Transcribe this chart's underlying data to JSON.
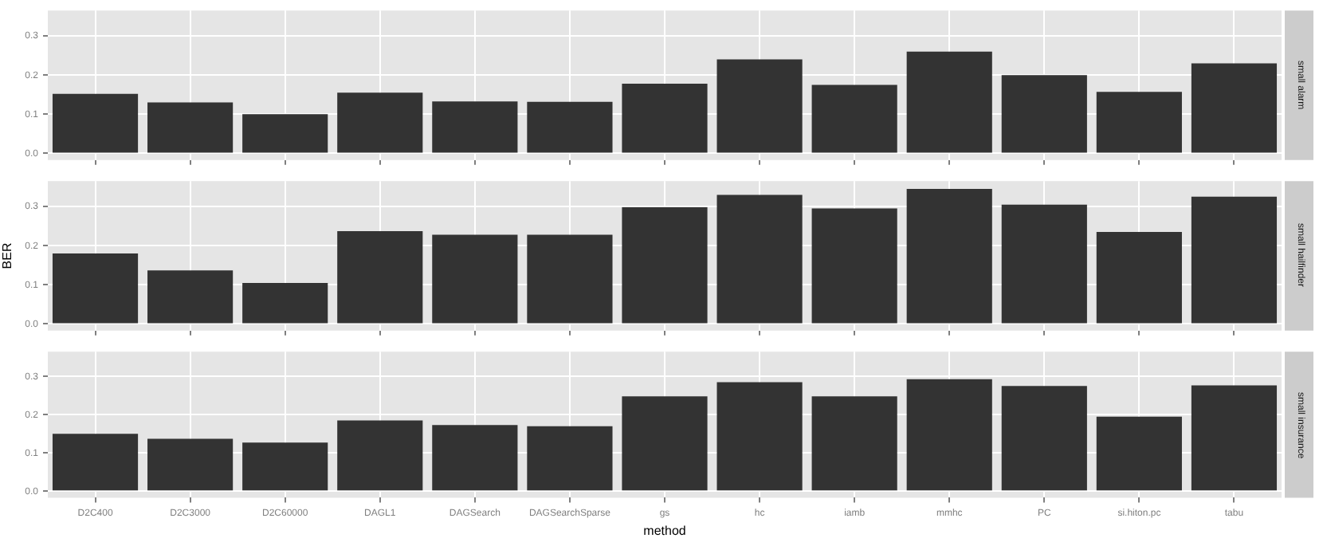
{
  "chart_data": [
    {
      "type": "bar",
      "annotations": [
        "small alarm"
      ],
      "categories": [
        null,
        null,
        null,
        null,
        null,
        null,
        null,
        null,
        null,
        null,
        null,
        null,
        null
      ],
      "values": [
        0.152,
        0.13,
        0.1,
        0.155,
        0.133,
        0.132,
        0.178,
        0.24,
        0.175,
        0.26,
        0.2,
        0.157,
        0.23
      ],
      "color": "#333333",
      "ylim": [
        -0.017,
        0.365
      ],
      "yticks": [
        {
          "value": 0,
          "label": "0.0"
        },
        {
          "value": 0.1,
          "label": "0.1"
        },
        {
          "value": 0.2,
          "label": "0.2"
        },
        {
          "value": 0.3,
          "label": "0.3"
        }
      ],
      "grid": true,
      "tick_labels": "y"
    },
    {
      "type": "bar",
      "annotations": [
        "small hailfinder"
      ],
      "ylabel": "BER",
      "categories": [
        null,
        null,
        null,
        null,
        null,
        null,
        null,
        null,
        null,
        null,
        null,
        null,
        null
      ],
      "values": [
        0.18,
        0.137,
        0.105,
        0.237,
        0.228,
        0.228,
        0.298,
        0.33,
        0.295,
        0.345,
        0.305,
        0.235,
        0.325
      ],
      "color": "#333333",
      "ylim": [
        -0.017,
        0.365
      ],
      "yticks": [
        {
          "value": 0,
          "label": "0.0"
        },
        {
          "value": 0.1,
          "label": "0.1"
        },
        {
          "value": 0.2,
          "label": "0.2"
        },
        {
          "value": 0.3,
          "label": "0.3"
        }
      ],
      "grid": true,
      "tick_labels": "y"
    },
    {
      "type": "bar",
      "annotations": [
        "small insurance"
      ],
      "xlabel": "method",
      "categories": [
        "D2C400",
        "D2C3000",
        "D2C60000",
        "DAGL1",
        "DAGSearch",
        "DAGSearchSparse",
        "gs",
        "hc",
        "iamb",
        "mmhc",
        "PC",
        "si.hiton.pc",
        "tabu"
      ],
      "values": [
        0.15,
        0.137,
        0.127,
        0.185,
        0.173,
        0.17,
        0.248,
        0.285,
        0.248,
        0.293,
        0.275,
        0.195,
        0.277
      ],
      "color": "#333333",
      "ylim": [
        -0.017,
        0.365
      ],
      "yticks": [
        {
          "value": 0,
          "label": "0.0"
        },
        {
          "value": 0.1,
          "label": "0.1"
        },
        {
          "value": 0.2,
          "label": "0.2"
        },
        {
          "value": 0.3,
          "label": "0.3"
        }
      ],
      "grid": true
    }
  ]
}
